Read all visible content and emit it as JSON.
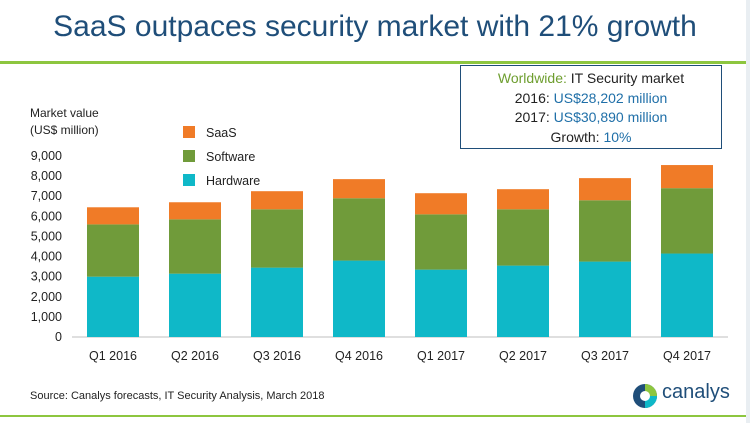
{
  "title": "SaaS outpaces security market with 21% growth",
  "info_box": {
    "line1_prefix": "Worldwide:",
    "line1_rest": "IT Security market",
    "line2_label": "2016:",
    "line2_value": "US$28,202 million",
    "line3_label": "2017:",
    "line3_value": "US$30,890 million",
    "line4_label": "Growth:",
    "line4_value": "10%"
  },
  "source": "Source: Canalys forecasts, IT Security Analysis, March 2018",
  "logo_text": "canalys",
  "colors": {
    "title": "#1F4E79",
    "accent_green": "#8DC63F",
    "saas": "#F07B27",
    "software": "#709B3A",
    "hardware": "#0FB8C8"
  },
  "chart_data": {
    "type": "bar",
    "stacked": true,
    "ylabel_lines": [
      "Market value",
      "(US$ million)"
    ],
    "categories": [
      "Q1 2016",
      "Q2 2016",
      "Q3 2016",
      "Q4 2016",
      "Q1 2017",
      "Q2 2017",
      "Q3 2017",
      "Q4 2017"
    ],
    "series": [
      {
        "name": "Hardware",
        "color": "#0FB8C8",
        "values": [
          3000,
          3150,
          3450,
          3800,
          3350,
          3550,
          3750,
          4150
        ]
      },
      {
        "name": "Software",
        "color": "#709B3A",
        "values": [
          2600,
          2700,
          2900,
          3100,
          2750,
          2800,
          3050,
          3250
        ]
      },
      {
        "name": "SaaS",
        "color": "#F07B27",
        "values": [
          850,
          850,
          900,
          950,
          1050,
          1000,
          1100,
          1150
        ]
      }
    ],
    "legend": [
      "SaaS",
      "Software",
      "Hardware"
    ],
    "legend_position": "top-left",
    "ylim": [
      0,
      9000
    ],
    "yticks": [
      "0",
      "1,000",
      "2,000",
      "3,000",
      "4,000",
      "5,000",
      "6,000",
      "7,000",
      "8,000",
      "9,000"
    ],
    "grid": false
  }
}
